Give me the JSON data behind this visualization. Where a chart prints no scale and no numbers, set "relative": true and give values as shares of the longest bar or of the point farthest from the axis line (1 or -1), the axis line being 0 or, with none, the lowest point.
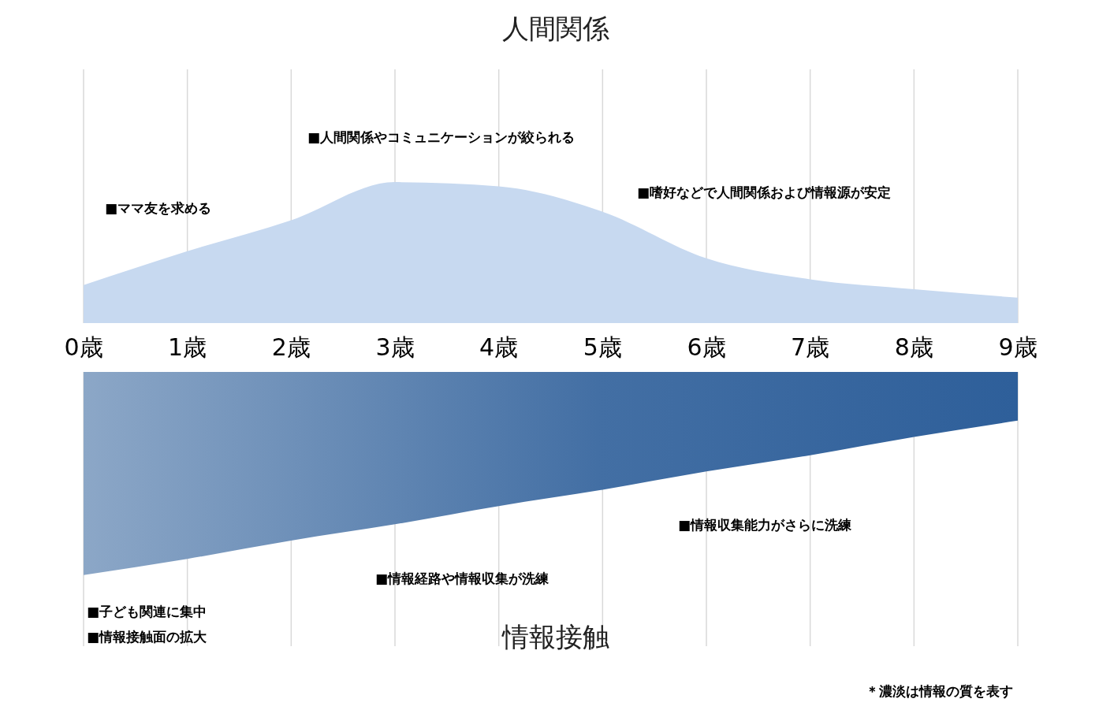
{
  "chart_data": [
    {
      "type": "area",
      "title": "人間関係",
      "categories": [
        "0歳",
        "1歳",
        "2歳",
        "3歳",
        "4歳",
        "5歳",
        "6歳",
        "7歳",
        "8歳",
        "9歳"
      ],
      "relative": true,
      "grid": "x",
      "series": [
        {
          "color": "#c7d9f0",
          "values": [
            0.27,
            0.51,
            0.73,
            1,
            0.97,
            0.79,
            0.46,
            0.31,
            0.24,
            0.18
          ]
        }
      ],
      "annotations": [
        "■ママ友を求める",
        "■人間関係やコミュニケーションが絞られる",
        "■嗜好などで人間関係および情報源が安定"
      ]
    },
    {
      "type": "area",
      "title": "情報接触",
      "categories": [
        null,
        null,
        null,
        null,
        null,
        null,
        null,
        null,
        null,
        null
      ],
      "relative": true,
      "grid": "x",
      "series": [
        {
          "color": "#2e5f9a",
          "values": [
            -1,
            -0.92,
            -0.83,
            -0.75,
            -0.66,
            -0.58,
            -0.49,
            -0.41,
            -0.32,
            -0.24
          ]
        }
      ],
      "annotations": [
        "■情報収集能力がさらに洗練",
        "■情報経路や情報収集が洗練",
        "■子ども関連に集中",
        "■情報接触面の拡大",
        "＊濃淡は情報の質を表す"
      ]
    }
  ]
}
